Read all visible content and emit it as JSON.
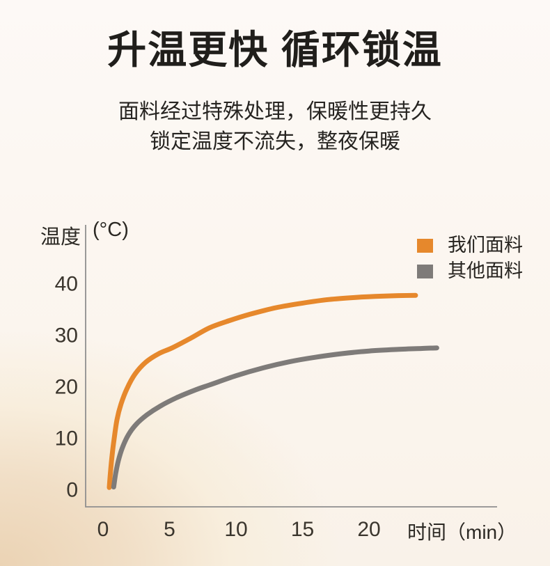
{
  "header": {
    "title": "升温更快 循环锁温",
    "subtitle_line1": "面料经过特殊处理，保暖性更持久",
    "subtitle_line2": "锁定温度不流失，整夜保暖"
  },
  "chart_data": {
    "type": "line",
    "title": "",
    "xlabel": "时间（min）",
    "ylabel": "温度",
    "y_unit": "(°C)",
    "x_ticks": [
      0,
      5,
      10,
      15,
      20
    ],
    "y_ticks": [
      0,
      10,
      20,
      30,
      40
    ],
    "xlim": [
      0,
      26
    ],
    "ylim": [
      0,
      43
    ],
    "grid": false,
    "legend_position": "top-right",
    "axis_color": "#8f8f8f",
    "tick_color": "#3a352d",
    "series": [
      {
        "name": "我们面料",
        "color": "#e6882c",
        "points": [
          [
            0.47,
            0.3
          ],
          [
            0.55,
            3
          ],
          [
            0.7,
            7
          ],
          [
            0.85,
            10
          ],
          [
            1.05,
            13.5
          ],
          [
            1.35,
            16.5
          ],
          [
            1.8,
            19.5
          ],
          [
            2.4,
            22.3
          ],
          [
            3.2,
            24.6
          ],
          [
            4.2,
            26.3
          ],
          [
            5.2,
            27.4
          ],
          [
            6.6,
            29.3
          ],
          [
            8,
            31.3
          ],
          [
            9.5,
            32.7
          ],
          [
            11,
            33.9
          ],
          [
            13,
            35.2
          ],
          [
            15,
            36.1
          ],
          [
            17,
            36.8
          ],
          [
            19,
            37.2
          ],
          [
            21,
            37.45
          ],
          [
            23.5,
            37.6
          ]
        ]
      },
      {
        "name": "其他面料",
        "color": "#7e7b79",
        "points": [
          [
            0.8,
            0.4
          ],
          [
            0.95,
            3
          ],
          [
            1.15,
            5.5
          ],
          [
            1.45,
            8
          ],
          [
            1.9,
            10.5
          ],
          [
            2.5,
            12.6
          ],
          [
            3.3,
            14.4
          ],
          [
            4.3,
            16.1
          ],
          [
            5.5,
            17.7
          ],
          [
            7,
            19.3
          ],
          [
            8,
            20.2
          ],
          [
            10,
            22
          ],
          [
            12,
            23.5
          ],
          [
            14,
            24.7
          ],
          [
            16,
            25.6
          ],
          [
            18,
            26.3
          ],
          [
            20,
            26.8
          ],
          [
            22,
            27.1
          ],
          [
            24,
            27.3
          ],
          [
            25.1,
            27.4
          ]
        ]
      }
    ]
  }
}
